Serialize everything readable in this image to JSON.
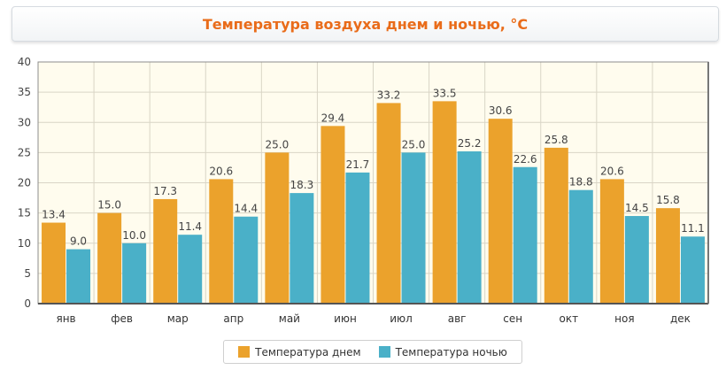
{
  "colors": {
    "day": "#eba22c",
    "night": "#4ab0c8",
    "plot_bg": "#fffcee",
    "grid": "#d9d5c6",
    "title": "#e96c1a"
  },
  "chart_data": {
    "type": "bar",
    "title": "Температура воздуха днем и ночью, °С",
    "categories": [
      "янв",
      "фев",
      "мар",
      "апр",
      "май",
      "июн",
      "июл",
      "авг",
      "сен",
      "окт",
      "ноя",
      "дек"
    ],
    "series": [
      {
        "name": "Температура днем",
        "values": [
          13.4,
          15.0,
          17.3,
          20.6,
          25.0,
          29.4,
          33.2,
          33.5,
          30.6,
          25.8,
          20.6,
          15.8
        ]
      },
      {
        "name": "Температура ночью",
        "values": [
          9.0,
          10.0,
          11.4,
          14.4,
          18.3,
          21.7,
          25.0,
          25.2,
          22.6,
          18.8,
          14.5,
          11.1
        ]
      }
    ],
    "ylim": [
      0,
      40
    ],
    "yticks": [
      0,
      5,
      10,
      15,
      20,
      25,
      30,
      35,
      40
    ],
    "grid": true,
    "legend_position": "bottom-center",
    "data_labels": true
  }
}
